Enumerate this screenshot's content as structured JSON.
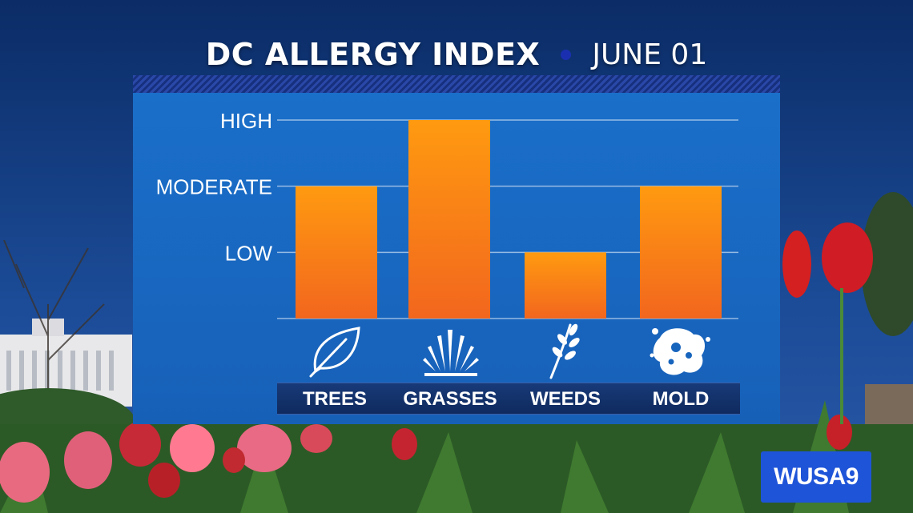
{
  "header": {
    "title": "DC ALLERGY INDEX",
    "date": "JUNE 01"
  },
  "logo": {
    "text": "WUSA9"
  },
  "icons": [
    "leaf-icon",
    "grass-icon",
    "weed-icon",
    "mold-spore-icon"
  ],
  "colors": {
    "bar_top": "#ff9a10",
    "bar_bottom": "#f2661e",
    "panel": "#1a6fc9",
    "logo_bg": "#1e54d8"
  },
  "chart_data": {
    "type": "bar",
    "title": "DC ALLERGY INDEX",
    "subtitle": "JUNE 01",
    "categories": [
      "TREES",
      "GRASSES",
      "WEEDS",
      "MOLD"
    ],
    "values": [
      2,
      3,
      1,
      2
    ],
    "ylim": [
      0,
      3
    ],
    "yticks": [
      {
        "value": 1,
        "label": "LOW"
      },
      {
        "value": 2,
        "label": "MODERATE"
      },
      {
        "value": 3,
        "label": "HIGH"
      }
    ],
    "grid": true,
    "legend": "none"
  }
}
